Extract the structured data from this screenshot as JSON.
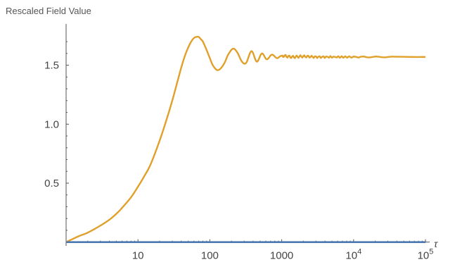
{
  "chart_data": {
    "type": "line",
    "title": "",
    "ylabel": "Rescaled Field Value",
    "xlabel": "τ",
    "x_scale": "log",
    "xlim": [
      1,
      100000
    ],
    "ylim": [
      -0.02,
      1.85
    ],
    "x_ticks": [
      {
        "value": 10,
        "base": "10",
        "exp": ""
      },
      {
        "value": 100,
        "base": "100",
        "exp": ""
      },
      {
        "value": 1000,
        "base": "1000",
        "exp": ""
      },
      {
        "value": 10000,
        "base": "10",
        "exp": "4"
      },
      {
        "value": 100000,
        "base": "10",
        "exp": "5"
      }
    ],
    "y_ticks": [
      {
        "value": 0.5,
        "label": "0.5"
      },
      {
        "value": 1.0,
        "label": "1.0"
      },
      {
        "value": 1.5,
        "label": "1.5"
      }
    ],
    "grid": false,
    "legend": "none",
    "series": [
      {
        "color": "#e0a02a",
        "x": [
          1,
          1.5,
          2,
          3,
          4,
          5,
          6,
          8,
          10,
          12,
          15,
          20,
          25,
          30,
          35,
          40,
          45,
          50,
          55,
          60,
          65,
          70,
          75,
          80,
          90,
          100,
          110,
          125,
          140,
          160,
          180,
          210,
          240,
          280,
          320,
          380,
          450,
          530,
          620,
          730,
          860,
          1000,
          1400,
          2000,
          3000,
          5000,
          10000,
          30000,
          100000
        ],
        "y": [
          0.0,
          0.05,
          0.08,
          0.14,
          0.19,
          0.24,
          0.29,
          0.38,
          0.47,
          0.55,
          0.66,
          0.86,
          1.04,
          1.2,
          1.35,
          1.48,
          1.58,
          1.65,
          1.7,
          1.73,
          1.74,
          1.74,
          1.72,
          1.7,
          1.63,
          1.56,
          1.5,
          1.46,
          1.47,
          1.52,
          1.59,
          1.64,
          1.61,
          1.53,
          1.52,
          1.62,
          1.53,
          1.6,
          1.55,
          1.59,
          1.56,
          1.58,
          1.57,
          1.575,
          1.57,
          1.57,
          1.57,
          1.57,
          1.57
        ]
      },
      {
        "color": "#4d79b3",
        "x": [
          1,
          100000
        ],
        "y": [
          0.0,
          0.0
        ]
      }
    ]
  }
}
